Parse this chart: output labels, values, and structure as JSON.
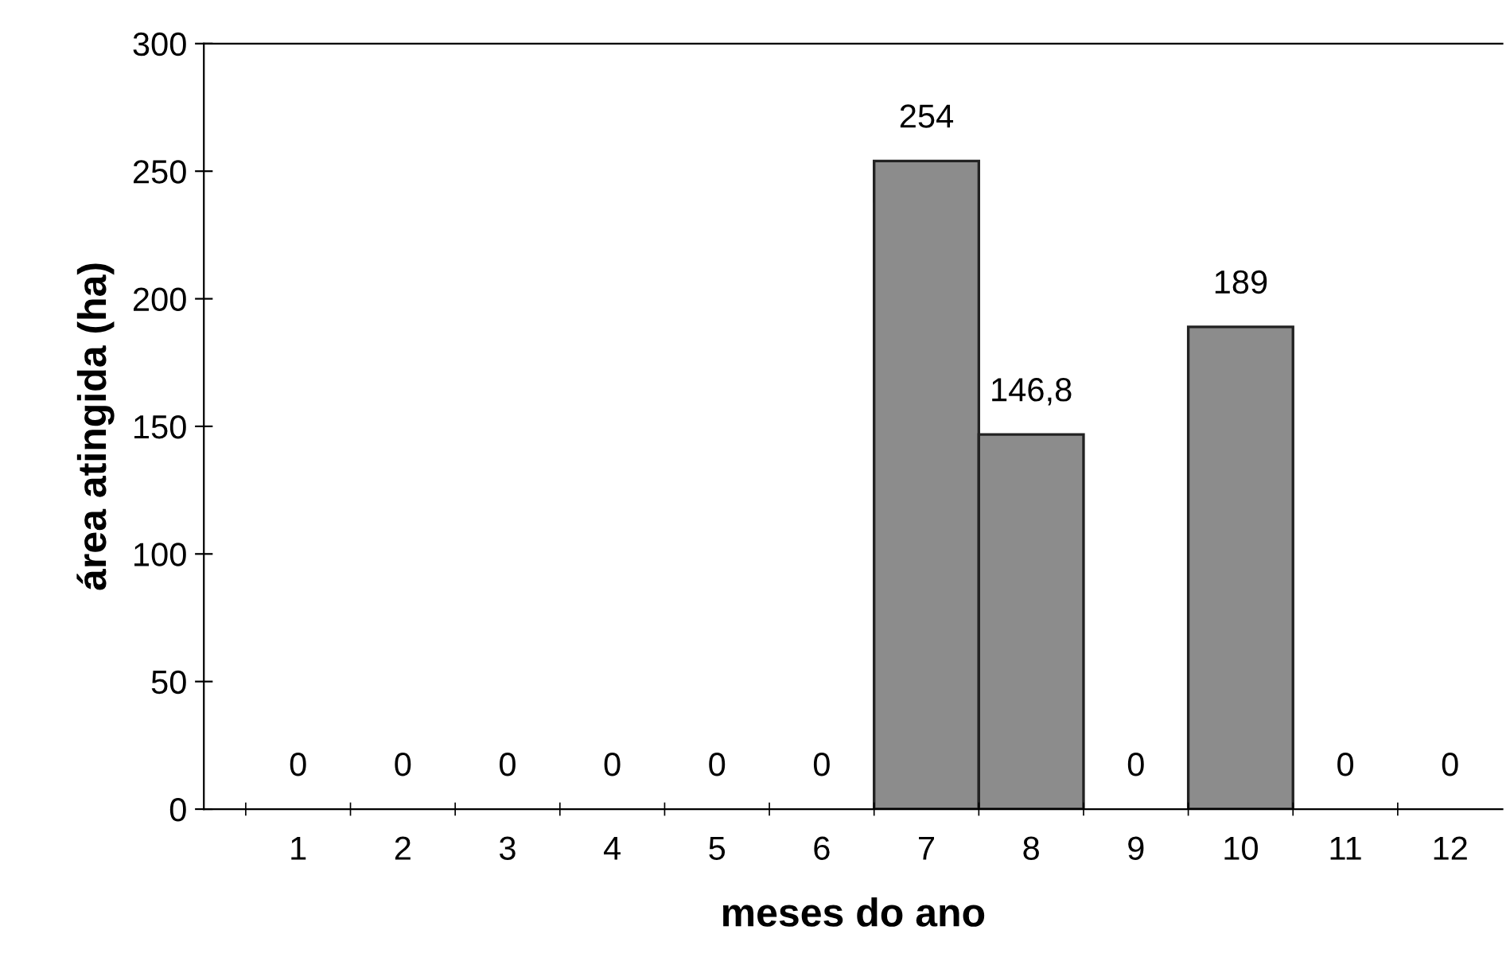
{
  "chart_data": {
    "type": "bar",
    "xlabel": "meses do ano",
    "ylabel": "área atingida (ha)",
    "categories": [
      "1",
      "2",
      "3",
      "4",
      "5",
      "6",
      "7",
      "8",
      "9",
      "10",
      "11",
      "12"
    ],
    "values": [
      0,
      0,
      0,
      0,
      0,
      0,
      254,
      146.8,
      0,
      189,
      0,
      0
    ],
    "value_labels": [
      "0",
      "0",
      "0",
      "0",
      "0",
      "0",
      "254",
      "146,8",
      "0",
      "189",
      "0",
      "0"
    ],
    "color": "#8c8c8c",
    "ylim": [
      0,
      300
    ],
    "yticks": [
      0,
      50,
      100,
      150,
      200,
      250,
      300
    ]
  }
}
